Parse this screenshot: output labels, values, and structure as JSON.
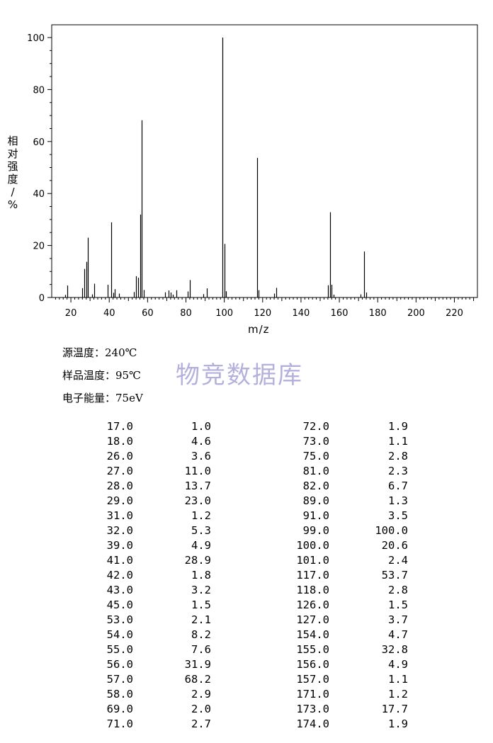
{
  "chart_data": {
    "type": "bar",
    "xlabel": "m/z",
    "ylabel": "相对强度/%",
    "xlim": [
      10,
      232
    ],
    "ylim": [
      0,
      105
    ],
    "xticks": [
      20,
      40,
      60,
      80,
      100,
      120,
      140,
      160,
      180,
      200,
      220
    ],
    "yticks": [
      0,
      20,
      40,
      60,
      80,
      100
    ],
    "grid": false,
    "peaks": [
      [
        17,
        1.0
      ],
      [
        18,
        4.6
      ],
      [
        26,
        3.6
      ],
      [
        27,
        11.0
      ],
      [
        28,
        13.7
      ],
      [
        29,
        23.0
      ],
      [
        31,
        1.2
      ],
      [
        32,
        5.3
      ],
      [
        39,
        4.9
      ],
      [
        41,
        28.9
      ],
      [
        42,
        1.8
      ],
      [
        43,
        3.2
      ],
      [
        45,
        1.5
      ],
      [
        53,
        2.1
      ],
      [
        54,
        8.2
      ],
      [
        55,
        7.6
      ],
      [
        56,
        31.9
      ],
      [
        57,
        68.2
      ],
      [
        58,
        2.9
      ],
      [
        69,
        2.0
      ],
      [
        71,
        2.7
      ],
      [
        72,
        1.9
      ],
      [
        73,
        1.1
      ],
      [
        75,
        2.8
      ],
      [
        81,
        2.3
      ],
      [
        82,
        6.7
      ],
      [
        89,
        1.3
      ],
      [
        91,
        3.5
      ],
      [
        99,
        100.0
      ],
      [
        100,
        20.6
      ],
      [
        101,
        2.4
      ],
      [
        117,
        53.7
      ],
      [
        118,
        2.8
      ],
      [
        126,
        1.5
      ],
      [
        127,
        3.7
      ],
      [
        154,
        4.7
      ],
      [
        155,
        32.8
      ],
      [
        156,
        4.9
      ],
      [
        157,
        1.1
      ],
      [
        171,
        1.2
      ],
      [
        173,
        17.7
      ],
      [
        174,
        1.9
      ]
    ]
  },
  "ylabel_chars": [
    "相",
    "对",
    "强",
    "度",
    "/",
    "%"
  ],
  "conditions": {
    "source_temp": "源温度：240℃",
    "sample_temp": "样品温度：95℃",
    "electron_energy": "电子能量：75eV"
  },
  "watermark": "物竞数据库",
  "table": {
    "left": [
      [
        "17.0",
        "1.0"
      ],
      [
        "18.0",
        "4.6"
      ],
      [
        "26.0",
        "3.6"
      ],
      [
        "27.0",
        "11.0"
      ],
      [
        "28.0",
        "13.7"
      ],
      [
        "29.0",
        "23.0"
      ],
      [
        "31.0",
        "1.2"
      ],
      [
        "32.0",
        "5.3"
      ],
      [
        "39.0",
        "4.9"
      ],
      [
        "41.0",
        "28.9"
      ],
      [
        "42.0",
        "1.8"
      ],
      [
        "43.0",
        "3.2"
      ],
      [
        "45.0",
        "1.5"
      ],
      [
        "53.0",
        "2.1"
      ],
      [
        "54.0",
        "8.2"
      ],
      [
        "55.0",
        "7.6"
      ],
      [
        "56.0",
        "31.9"
      ],
      [
        "57.0",
        "68.2"
      ],
      [
        "58.0",
        "2.9"
      ],
      [
        "69.0",
        "2.0"
      ],
      [
        "71.0",
        "2.7"
      ]
    ],
    "right": [
      [
        "72.0",
        "1.9"
      ],
      [
        "73.0",
        "1.1"
      ],
      [
        "75.0",
        "2.8"
      ],
      [
        "81.0",
        "2.3"
      ],
      [
        "82.0",
        "6.7"
      ],
      [
        "89.0",
        "1.3"
      ],
      [
        "91.0",
        "3.5"
      ],
      [
        "99.0",
        "100.0"
      ],
      [
        "100.0",
        "20.6"
      ],
      [
        "101.0",
        "2.4"
      ],
      [
        "117.0",
        "53.7"
      ],
      [
        "118.0",
        "2.8"
      ],
      [
        "126.0",
        "1.5"
      ],
      [
        "127.0",
        "3.7"
      ],
      [
        "154.0",
        "4.7"
      ],
      [
        "155.0",
        "32.8"
      ],
      [
        "156.0",
        "4.9"
      ],
      [
        "157.0",
        "1.1"
      ],
      [
        "171.0",
        "1.2"
      ],
      [
        "173.0",
        "17.7"
      ],
      [
        "174.0",
        "1.9"
      ]
    ]
  }
}
